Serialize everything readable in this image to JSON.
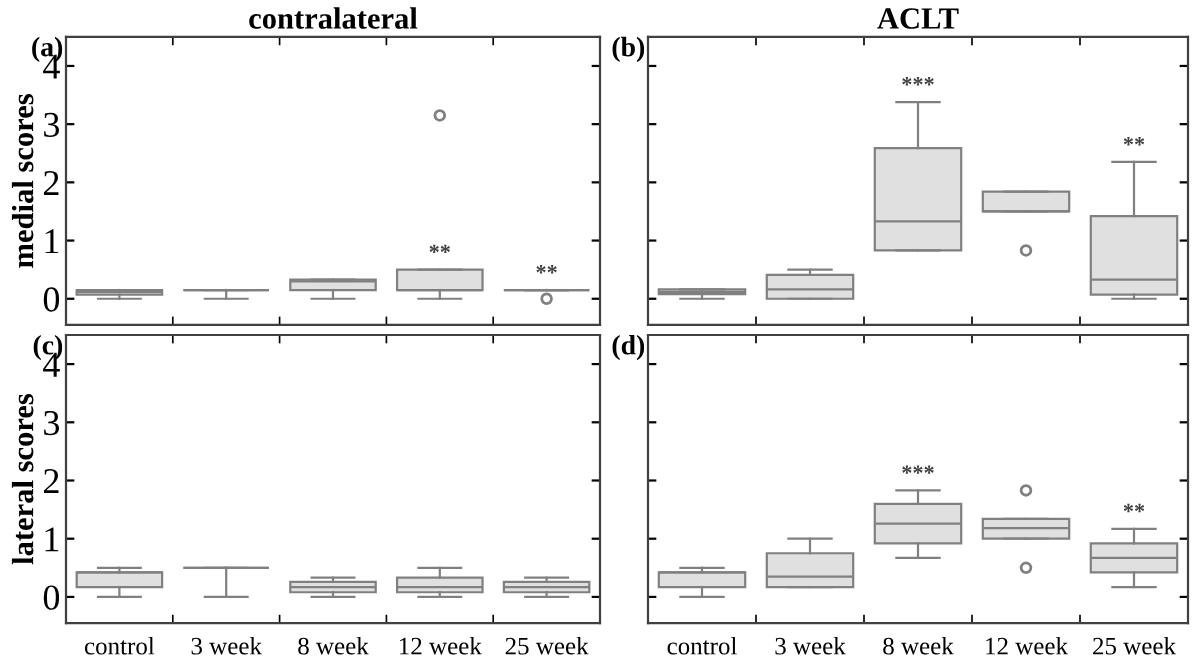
{
  "chart_data": [
    {
      "type": "box",
      "title": "contralateral",
      "ylabel": "medial scores",
      "categories": [
        "control",
        "3 week",
        "8 week",
        "12 week",
        "25 week"
      ],
      "ylim": [
        -0.45,
        4.5
      ],
      "yticks": [
        0,
        1,
        2,
        3,
        4
      ],
      "tick_labels": "y",
      "boxes": [
        {
          "low": 0,
          "q1": 0.07,
          "median": 0.12,
          "q3": 0.15,
          "high": 0.15
        },
        {
          "low": 0,
          "q1": 0.15,
          "median": 0.15,
          "q3": 0.15,
          "high": 0.15
        },
        {
          "low": 0,
          "q1": 0.15,
          "median": 0.3,
          "q3": 0.33,
          "high": 0.33
        },
        {
          "low": 0,
          "q1": 0.15,
          "median": 0.15,
          "q3": 0.5,
          "high": 0.5,
          "outliers": [
            3.15
          ]
        },
        {
          "low": 0.15,
          "q1": 0.15,
          "median": 0.15,
          "q3": 0.15,
          "high": 0.15,
          "outliers": [
            0
          ]
        }
      ],
      "annotations": [
        "(a)",
        {
          "text": "**",
          "x": "12 week",
          "y": 0.5
        },
        {
          "text": "**",
          "x": "25 week",
          "y": 0.15
        }
      ]
    },
    {
      "type": "box",
      "title": "ACLT",
      "categories": [
        "control",
        "3 week",
        "8 week",
        "12 week",
        "25 week"
      ],
      "ylim": [
        -0.45,
        4.5
      ],
      "yticks": [
        0,
        1,
        2,
        3,
        4
      ],
      "tick_labels": false,
      "boxes": [
        {
          "low": 0,
          "q1": 0.08,
          "median": 0.12,
          "q3": 0.16,
          "high": 0.16
        },
        {
          "low": 0,
          "q1": 0,
          "median": 0.16,
          "q3": 0.41,
          "high": 0.5
        },
        {
          "low": 0.83,
          "q1": 0.83,
          "median": 1.33,
          "q3": 2.59,
          "high": 3.38
        },
        {
          "low": 1.5,
          "q1": 1.5,
          "median": 1.5,
          "q3": 1.84,
          "high": 1.84,
          "outliers": [
            0.83
          ]
        },
        {
          "low": 0,
          "q1": 0.07,
          "median": 0.33,
          "q3": 1.42,
          "high": 2.35
        }
      ],
      "annotations": [
        "(b)",
        {
          "text": "***",
          "x": "8 week",
          "y": 3.38
        },
        {
          "text": "**",
          "x": "25 week",
          "y": 2.35
        }
      ]
    },
    {
      "type": "box",
      "ylabel": "lateral scores",
      "categories": [
        "control",
        "3 week",
        "8 week",
        "12 week",
        "25 week"
      ],
      "ylim": [
        -0.45,
        4.5
      ],
      "yticks": [
        0,
        1,
        2,
        3,
        4
      ],
      "boxes": [
        {
          "low": 0,
          "q1": 0.17,
          "median": 0.42,
          "q3": 0.42,
          "high": 0.5
        },
        {
          "low": 0,
          "q1": 0.5,
          "median": 0.5,
          "q3": 0.5,
          "high": 0.5
        },
        {
          "low": 0,
          "q1": 0.08,
          "median": 0.17,
          "q3": 0.26,
          "high": 0.33
        },
        {
          "low": 0,
          "q1": 0.08,
          "median": 0.17,
          "q3": 0.33,
          "high": 0.5
        },
        {
          "low": 0,
          "q1": 0.08,
          "median": 0.17,
          "q3": 0.26,
          "high": 0.33
        }
      ],
      "annotations": [
        "(c)"
      ]
    },
    {
      "type": "box",
      "categories": [
        "control",
        "3 week",
        "8 week",
        "12 week",
        "25 week"
      ],
      "ylim": [
        -0.45,
        4.5
      ],
      "yticks": [
        0,
        1,
        2,
        3,
        4
      ],
      "tick_labels": "x",
      "boxes": [
        {
          "low": 0,
          "q1": 0.17,
          "median": 0.42,
          "q3": 0.42,
          "high": 0.5
        },
        {
          "low": 0.17,
          "q1": 0.17,
          "median": 0.35,
          "q3": 0.75,
          "high": 1.0
        },
        {
          "low": 0.67,
          "q1": 0.92,
          "median": 1.26,
          "q3": 1.6,
          "high": 1.83
        },
        {
          "low": 1.0,
          "q1": 1.0,
          "median": 1.18,
          "q3": 1.34,
          "high": 1.34,
          "outliers": [
            1.83,
            0.5
          ]
        },
        {
          "low": 0.17,
          "q1": 0.42,
          "median": 0.67,
          "q3": 0.92,
          "high": 1.17
        }
      ],
      "annotations": [
        "(d)",
        {
          "text": "***",
          "x": "8 week",
          "y": 1.83
        },
        {
          "text": "**",
          "x": "25 week",
          "y": 1.17
        }
      ]
    }
  ]
}
